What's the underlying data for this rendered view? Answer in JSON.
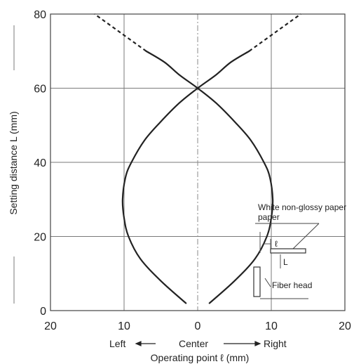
{
  "chart_data": {
    "type": "line",
    "ylabel": "Setting distance L (mm)",
    "xlabel": "Operating point ℓ (mm)",
    "xlim": [
      -20,
      20
    ],
    "ylim": [
      0,
      80
    ],
    "x_ticks": [
      "20",
      "10",
      "0",
      "10",
      "20"
    ],
    "y_ticks": [
      "0",
      "20",
      "40",
      "60",
      "80"
    ],
    "x_direction_labels": {
      "left": "Left",
      "center": "Center",
      "right": "Right"
    },
    "grid": true,
    "series": [
      {
        "values": [
          [
            -1.6,
            2
          ],
          [
            -5.0,
            8
          ],
          [
            -7.8,
            14
          ],
          [
            -9.4,
            20
          ],
          [
            -10.0,
            25
          ],
          [
            -10.2,
            30
          ],
          [
            -9.8,
            36
          ],
          [
            -9.0,
            40
          ],
          [
            -7.2,
            46
          ],
          [
            -5.0,
            51
          ],
          [
            -2.5,
            56
          ],
          [
            0,
            60
          ],
          [
            2.5,
            63.6
          ],
          [
            4.5,
            67
          ],
          [
            7.0,
            70
          ]
        ],
        "dashed_extension": [
          [
            7.0,
            70
          ],
          [
            10.5,
            75
          ],
          [
            14.0,
            80
          ]
        ]
      },
      {
        "values": [
          [
            1.6,
            2
          ],
          [
            5.0,
            8
          ],
          [
            7.8,
            14
          ],
          [
            9.4,
            20
          ],
          [
            10.0,
            25
          ],
          [
            10.2,
            30
          ],
          [
            9.8,
            36
          ],
          [
            9.0,
            40
          ],
          [
            7.2,
            46
          ],
          [
            5.0,
            51
          ],
          [
            2.5,
            56
          ],
          [
            0,
            60
          ],
          [
            -2.5,
            63.6
          ],
          [
            -4.5,
            67
          ],
          [
            -7.0,
            70
          ]
        ],
        "dashed_extension": [
          [
            -7.0,
            70
          ],
          [
            -10.5,
            75
          ],
          [
            -14.0,
            80
          ]
        ]
      }
    ],
    "annotations": [
      "White non-glossy paper",
      "ℓ",
      "L",
      "Fiber head"
    ]
  }
}
